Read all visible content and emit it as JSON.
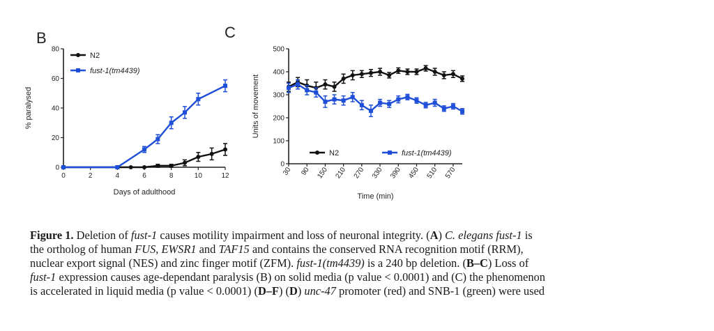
{
  "panels": {
    "B": {
      "letter": "B"
    },
    "C": {
      "letter": "C"
    }
  },
  "colors": {
    "n2": "#111111",
    "fust": "#1f4fd8"
  },
  "chart_data": [
    {
      "type": "line",
      "panel": "B",
      "xlabel": "Days of adulthood",
      "ylabel": "% paralysed",
      "xlim": [
        0,
        12
      ],
      "ylim": [
        0,
        80
      ],
      "xticks": [
        "0",
        "2",
        "4",
        "6",
        "8",
        "10",
        "12"
      ],
      "yticks": [
        "0",
        "20",
        "40",
        "60",
        "80"
      ],
      "legend": "top-left",
      "series": [
        {
          "name": "N2",
          "color": "#111111",
          "x": [
            0,
            4,
            5,
            6,
            7,
            8,
            9,
            10,
            11,
            12
          ],
          "y": [
            0,
            0,
            0,
            0,
            1,
            1,
            3,
            7,
            9,
            12
          ],
          "err": [
            0,
            0,
            0,
            0,
            1,
            1,
            2,
            3,
            4,
            4
          ]
        },
        {
          "name": "fust-1(tm4439)",
          "color": "#1f4fd8",
          "x": [
            0,
            4,
            6,
            7,
            8,
            9,
            10,
            12
          ],
          "y": [
            0,
            0,
            12,
            19,
            30,
            37,
            46,
            55
          ],
          "err": [
            0,
            1,
            2,
            3,
            4,
            4,
            4,
            4
          ]
        }
      ]
    },
    {
      "type": "line",
      "panel": "C",
      "xlabel": "Time (min)",
      "ylabel": "Units of movement",
      "xlim": [
        30,
        600
      ],
      "ylim": [
        0,
        500
      ],
      "xticks": [
        "30",
        "90",
        "150",
        "210",
        "270",
        "330",
        "390",
        "450",
        "510",
        "570"
      ],
      "yticks": [
        "0",
        "100",
        "200",
        "300",
        "400",
        "500"
      ],
      "legend": "bottom",
      "series": [
        {
          "name": "N2",
          "color": "#111111",
          "x": [
            30,
            60,
            90,
            120,
            150,
            180,
            210,
            240,
            270,
            300,
            330,
            360,
            390,
            420,
            450,
            480,
            510,
            540,
            570,
            600
          ],
          "y": [
            335,
            355,
            340,
            330,
            345,
            335,
            370,
            385,
            390,
            395,
            400,
            385,
            405,
            400,
            400,
            415,
            400,
            385,
            390,
            370
          ],
          "err": [
            20,
            20,
            25,
            25,
            20,
            20,
            20,
            20,
            15,
            15,
            15,
            12,
            12,
            12,
            12,
            12,
            15,
            15,
            15,
            12
          ]
        },
        {
          "name": "fust-1(tm4439)",
          "color": "#1f4fd8",
          "x": [
            30,
            60,
            90,
            120,
            150,
            180,
            210,
            240,
            270,
            300,
            330,
            360,
            390,
            420,
            450,
            480,
            510,
            540,
            570,
            600
          ],
          "y": [
            330,
            345,
            320,
            310,
            270,
            280,
            275,
            290,
            255,
            230,
            265,
            260,
            280,
            290,
            275,
            255,
            265,
            240,
            250,
            228
          ],
          "err": [
            20,
            20,
            20,
            20,
            25,
            20,
            20,
            20,
            20,
            25,
            15,
            15,
            15,
            12,
            12,
            12,
            15,
            12,
            12,
            12
          ]
        }
      ]
    }
  ],
  "caption": {
    "lines": [
      "<b>Figure 1.</b>  Deletion of <i>fust-1</i> causes motility impairment and loss of neuronal integrity. (<b>A</b>) <i>C. elegans fust-1</i> is",
      "the ortholog of human <i>FUS</i>, <i>EWSR1</i> and <i>TAF15</i> and contains the conserved RNA recognition motif (RRM),",
      "nuclear export signal (NES) and zinc finger motif (ZFM). <i>fust-1(tm4439)</i> is a 240 bp deletion. (<b>B–C</b>) Loss of",
      "<i>fust-1</i> expression causes age-dependant paralysis (B) on solid media (p value &lt; 0.0001) and (C) the phenomenon",
      "is accelerated in liquid media (p value &lt; 0.0001) (<b>D–F</b>) (<b>D</b>) <i>unc-47</i> promoter (red) and SNB-1 (green) were used"
    ]
  }
}
